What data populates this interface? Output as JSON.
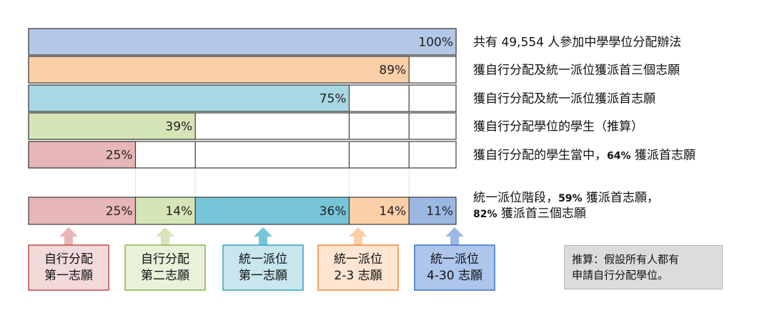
{
  "chart_data": {
    "type": "bar",
    "orientation": "horizontal",
    "xlim": [
      0,
      100
    ],
    "bars": [
      {
        "value": 100,
        "label": "100%",
        "color": "#b3c7e6",
        "description": "共有 49,554 人參加中學學位分配辦法"
      },
      {
        "value": 89,
        "label": "89%",
        "color": "#fbcfa8",
        "description": "獲自行分配及統一派位獲派首三個志願"
      },
      {
        "value": 75,
        "label": "75%",
        "color": "#a9d7e4",
        "description": "獲自行分配及統一派位獲派首志願"
      },
      {
        "value": 39,
        "label": "39%",
        "color": "#d6e5b8",
        "description": "獲自行分配學位的學生（推算）"
      },
      {
        "value": 25,
        "label": "25%",
        "color": "#e7b6b6",
        "description_parts": [
          "獲自行分配的學生當中，",
          "64%",
          " 獲派首志願"
        ]
      }
    ],
    "stacked": {
      "segments": [
        {
          "value": 25,
          "label": "25%",
          "color": "#e7b6b6",
          "category": [
            "自行分配",
            "第一志願"
          ],
          "border": "#c04a4a",
          "box_fill": "#f3dada"
        },
        {
          "value": 14,
          "label": "14%",
          "color": "#d6e5b8",
          "category": [
            "自行分配",
            "第二志願"
          ],
          "border": "#8fb34f",
          "box_fill": "#e9f1da"
        },
        {
          "value": 36,
          "label": "36%",
          "color": "#76c6d8",
          "category": [
            "統一派位",
            "第一志願"
          ],
          "border": "#36a3bd",
          "box_fill": "#c7e6ee"
        },
        {
          "value": 14,
          "label": "14%",
          "color": "#fbcfa8",
          "category": [
            "統一派位",
            "2-3 志願"
          ],
          "border": "#f08a37",
          "box_fill": "#fde5d2"
        },
        {
          "value": 11,
          "label": "11%",
          "color": "#9bb8e3",
          "category": [
            "統一派位",
            "4-30 志願"
          ],
          "border": "#3f72c3",
          "box_fill": "#aec6ec"
        }
      ],
      "description_lines": [
        [
          "統一派位階段，",
          "59%",
          " 獲派首志願，"
        ],
        [
          "82%",
          " 獲派首三個志願"
        ]
      ]
    }
  },
  "note": {
    "lines": [
      "推算：假設所有人都有",
      "申請自行分配學位。"
    ]
  }
}
